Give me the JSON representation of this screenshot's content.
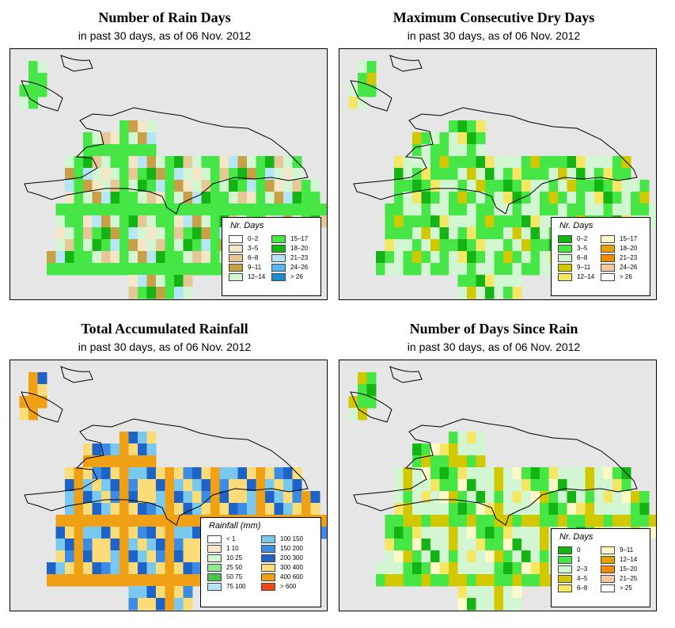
{
  "panels": [
    {
      "id": "rain-days",
      "title": "Number of Rain Days",
      "subtitle": "in past 30 days, as of  06 Nov. 2012",
      "legend": {
        "title": "Nr. Days",
        "entries": [
          {
            "label": "0–2",
            "color": "#ffffff"
          },
          {
            "label": "3–5",
            "color": "#f5e6c8"
          },
          {
            "label": "6–8",
            "color": "#e6c896"
          },
          {
            "label": "9–11",
            "color": "#c8a046"
          },
          {
            "label": "12–14",
            "color": "#d2f5d2"
          },
          {
            "label": "15–17",
            "color": "#46e646"
          },
          {
            "label": "18–20",
            "color": "#14b414"
          },
          {
            "label": "21–23",
            "color": "#b4e6f5"
          },
          {
            "label": "24–26",
            "color": "#5ab4f0"
          },
          {
            "label": "> 26",
            "color": "#1e8cc8"
          }
        ]
      }
    },
    {
      "id": "max-dry-days",
      "title": "Maximum Consecutive Dry Days",
      "subtitle": "in past 30 days, as of  06 Nov. 2012",
      "legend": {
        "title": "Nr. Days",
        "entries": [
          {
            "label": "0–2",
            "color": "#14b414"
          },
          {
            "label": "3–5",
            "color": "#46e646"
          },
          {
            "label": "6–8",
            "color": "#d2f5d2"
          },
          {
            "label": "9–11",
            "color": "#d2c800"
          },
          {
            "label": "12–14",
            "color": "#f5e664"
          },
          {
            "label": "15–17",
            "color": "#fffac8"
          },
          {
            "label": "18–20",
            "color": "#e6a000"
          },
          {
            "label": "21–23",
            "color": "#f08c00"
          },
          {
            "label": "24–26",
            "color": "#f5c8a0"
          },
          {
            "label": "> 26",
            "color": "#ffffff"
          }
        ]
      }
    },
    {
      "id": "total-rainfall",
      "title": "Total Accumulated Rainfall",
      "subtitle": "in past 30 days, as of  06 Nov. 2012",
      "legend": {
        "title": "Rainfall (mm)",
        "entries": [
          {
            "label": "< 1",
            "color": "#ffffff"
          },
          {
            "label": "1   10",
            "color": "#f5e6c8"
          },
          {
            "label": "10   25",
            "color": "#d2f5d2"
          },
          {
            "label": "25   50",
            "color": "#8ceb8c"
          },
          {
            "label": "50   75",
            "color": "#46c846"
          },
          {
            "label": "75   100",
            "color": "#b4e6f5"
          },
          {
            "label": "100   150",
            "color": "#78c8f0"
          },
          {
            "label": "150   200",
            "color": "#3c8ce6"
          },
          {
            "label": "200   300",
            "color": "#1e64c8"
          },
          {
            "label": "300   400",
            "color": "#fadc78"
          },
          {
            "label": "400   600",
            "color": "#f0a014"
          },
          {
            "label": "> 600",
            "color": "#f04614"
          }
        ]
      }
    },
    {
      "id": "days-since-rain",
      "title": "Number of Days Since Rain",
      "subtitle": "in past 30 days, as of  06 Nov. 2012",
      "legend": {
        "title": "Nr. Days",
        "entries": [
          {
            "label": "0",
            "color": "#14b414"
          },
          {
            "label": "1",
            "color": "#46e646"
          },
          {
            "label": "2–3",
            "color": "#d2f5d2"
          },
          {
            "label": "4–5",
            "color": "#d2c800"
          },
          {
            "label": "6–8",
            "color": "#f5e664"
          },
          {
            "label": "9–11",
            "color": "#fffac8"
          },
          {
            "label": "12–14",
            "color": "#e6a000"
          },
          {
            "label": "15–20",
            "color": "#f08c00"
          },
          {
            "label": "21–25",
            "color": "#f5c8a0"
          },
          {
            "label": "> 25",
            "color": "#ffffff"
          }
        ]
      }
    }
  ]
}
